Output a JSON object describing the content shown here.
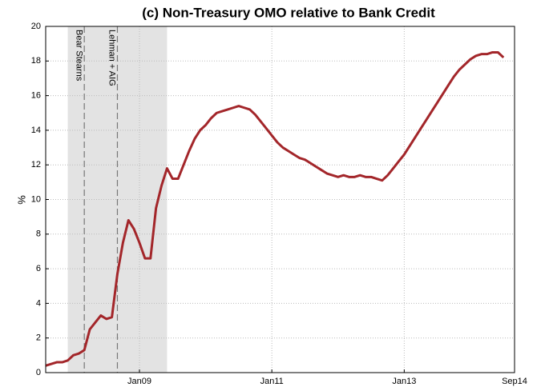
{
  "chart_data": {
    "type": "line",
    "title": "(c) Non-Treasury OMO relative to Bank Credit",
    "y_label": "%",
    "x": [
      "2007-08",
      "2007-09",
      "2007-10",
      "2007-11",
      "2007-12",
      "2008-01",
      "2008-02",
      "2008-03",
      "2008-04",
      "2008-05",
      "2008-06",
      "2008-07",
      "2008-08",
      "2008-09",
      "2008-10",
      "2008-11",
      "2008-12",
      "2009-01",
      "2009-02",
      "2009-03",
      "2009-04",
      "2009-05",
      "2009-06",
      "2009-07",
      "2009-08",
      "2009-09",
      "2009-10",
      "2009-11",
      "2009-12",
      "2010-01",
      "2010-02",
      "2010-03",
      "2010-04",
      "2010-05",
      "2010-06",
      "2010-07",
      "2010-08",
      "2010-09",
      "2010-10",
      "2010-11",
      "2010-12",
      "2011-01",
      "2011-02",
      "2011-03",
      "2011-04",
      "2011-05",
      "2011-06",
      "2011-07",
      "2011-08",
      "2011-09",
      "2011-10",
      "2011-11",
      "2011-12",
      "2012-01",
      "2012-02",
      "2012-03",
      "2012-04",
      "2012-05",
      "2012-06",
      "2012-07",
      "2012-08",
      "2012-09",
      "2012-10",
      "2012-11",
      "2012-12",
      "2013-01",
      "2013-02",
      "2013-03",
      "2013-04",
      "2013-05",
      "2013-06",
      "2013-07",
      "2013-08",
      "2013-09",
      "2013-10",
      "2013-11",
      "2013-12",
      "2014-01",
      "2014-02",
      "2014-03",
      "2014-04",
      "2014-05",
      "2014-06",
      "2014-07"
    ],
    "series": [
      {
        "color": "#a3262a",
        "values": [
          0.4,
          0.5,
          0.6,
          0.6,
          0.7,
          1.0,
          1.1,
          1.3,
          2.5,
          2.9,
          3.3,
          3.1,
          3.2,
          5.7,
          7.5,
          8.8,
          8.3,
          7.5,
          6.6,
          6.6,
          9.5,
          10.8,
          11.8,
          11.2,
          11.2,
          12.0,
          12.8,
          13.5,
          14.0,
          14.3,
          14.7,
          15.0,
          15.1,
          15.2,
          15.3,
          15.4,
          15.3,
          15.2,
          14.9,
          14.5,
          14.1,
          13.7,
          13.3,
          13.0,
          12.8,
          12.6,
          12.4,
          12.3,
          12.1,
          11.9,
          11.7,
          11.5,
          11.4,
          11.3,
          11.4,
          11.3,
          11.3,
          11.4,
          11.3,
          11.3,
          11.2,
          11.1,
          11.4,
          11.8,
          12.2,
          12.6,
          13.1,
          13.6,
          14.1,
          14.6,
          15.1,
          15.6,
          16.1,
          16.6,
          17.1,
          17.5,
          17.8,
          18.1,
          18.3,
          18.4,
          18.4,
          18.5,
          18.5,
          18.2
        ]
      }
    ],
    "xlim": [
      "2007-08",
      "2014-09"
    ],
    "xticks": [
      {
        "value": "2009-01",
        "label": "Jan09"
      },
      {
        "value": "2011-01",
        "label": "Jan11"
      },
      {
        "value": "2013-01",
        "label": "Jan13"
      },
      {
        "value": "2014-09",
        "label": "Sep14"
      }
    ],
    "ylim": [
      0,
      20
    ],
    "yticks": [
      0,
      2,
      4,
      6,
      8,
      10,
      12,
      14,
      16,
      18,
      20
    ],
    "grid": true,
    "shaded_regions": [
      {
        "x0": "2007-12",
        "x1": "2009-06",
        "color": "#e3e3e3"
      }
    ],
    "events": [
      {
        "x": "2008-03",
        "label": "Bear Stearns"
      },
      {
        "x": "2008-09",
        "label": "Lehman + AIG"
      }
    ]
  }
}
